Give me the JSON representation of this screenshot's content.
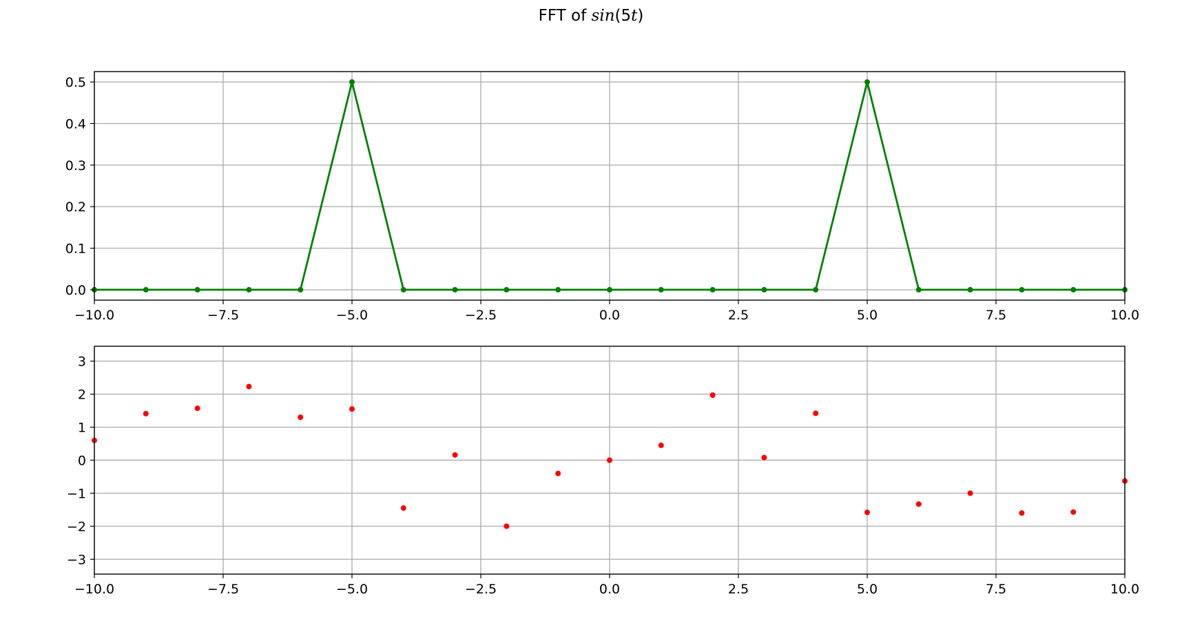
{
  "title": {
    "prefix": "FFT of ",
    "math": "sin",
    "paren_open": "(5",
    "var": "t",
    "paren_close": ")"
  },
  "chart_data": [
    {
      "type": "line",
      "x": [
        -10,
        -9,
        -8,
        -7,
        -6,
        -5,
        -4,
        -3,
        -2,
        -1,
        0,
        1,
        2,
        3,
        4,
        5,
        6,
        7,
        8,
        9,
        10
      ],
      "series": [
        {
          "values": [
            0,
            0,
            0,
            0,
            0,
            0.5,
            0,
            0,
            0,
            0,
            0,
            0,
            0,
            0,
            0,
            0.5,
            0,
            0,
            0,
            0,
            0
          ],
          "color": "#008000",
          "marker": "dot",
          "line": true
        }
      ],
      "xlim": [
        -10,
        10
      ],
      "ylim": [
        -0.025,
        0.525
      ],
      "xticks": [
        -10,
        -7.5,
        -5,
        -2.5,
        0,
        2.5,
        5,
        7.5,
        10
      ],
      "xtick_labels": [
        "−10.0",
        "−7.5",
        "−5.0",
        "−2.5",
        "0.0",
        "2.5",
        "5.0",
        "7.5",
        "10.0"
      ],
      "yticks": [
        0,
        0.1,
        0.2,
        0.3,
        0.4,
        0.5
      ],
      "ytick_labels": [
        "0.0",
        "0.1",
        "0.2",
        "0.3",
        "0.4",
        "0.5"
      ],
      "grid": true
    },
    {
      "type": "scatter",
      "x": [
        -10,
        -9,
        -8,
        -7,
        -6,
        -5,
        -4,
        -3,
        -2,
        -1,
        0,
        1,
        2,
        3,
        4,
        5,
        6,
        7,
        8,
        9,
        10
      ],
      "series": [
        {
          "values": [
            0.6,
            1.41,
            1.57,
            2.23,
            1.3,
            1.55,
            -1.45,
            0.16,
            -2.0,
            -0.4,
            0.0,
            0.45,
            1.97,
            0.08,
            1.42,
            -1.58,
            -1.33,
            -1.0,
            -1.6,
            -1.57,
            -0.63
          ],
          "color": "#ff0000",
          "marker": "dot",
          "line": false
        }
      ],
      "xlim": [
        -10,
        10
      ],
      "ylim": [
        -3.45,
        3.45
      ],
      "xticks": [
        -10,
        -7.5,
        -5,
        -2.5,
        0,
        2.5,
        5,
        7.5,
        10
      ],
      "xtick_labels": [
        "−10.0",
        "−7.5",
        "−5.0",
        "−2.5",
        "0.0",
        "2.5",
        "5.0",
        "7.5",
        "10.0"
      ],
      "yticks": [
        -3,
        -2,
        -1,
        0,
        1,
        2,
        3
      ],
      "ytick_labels": [
        "−3",
        "−2",
        "−1",
        "0",
        "1",
        "2",
        "3"
      ],
      "grid": true
    }
  ]
}
